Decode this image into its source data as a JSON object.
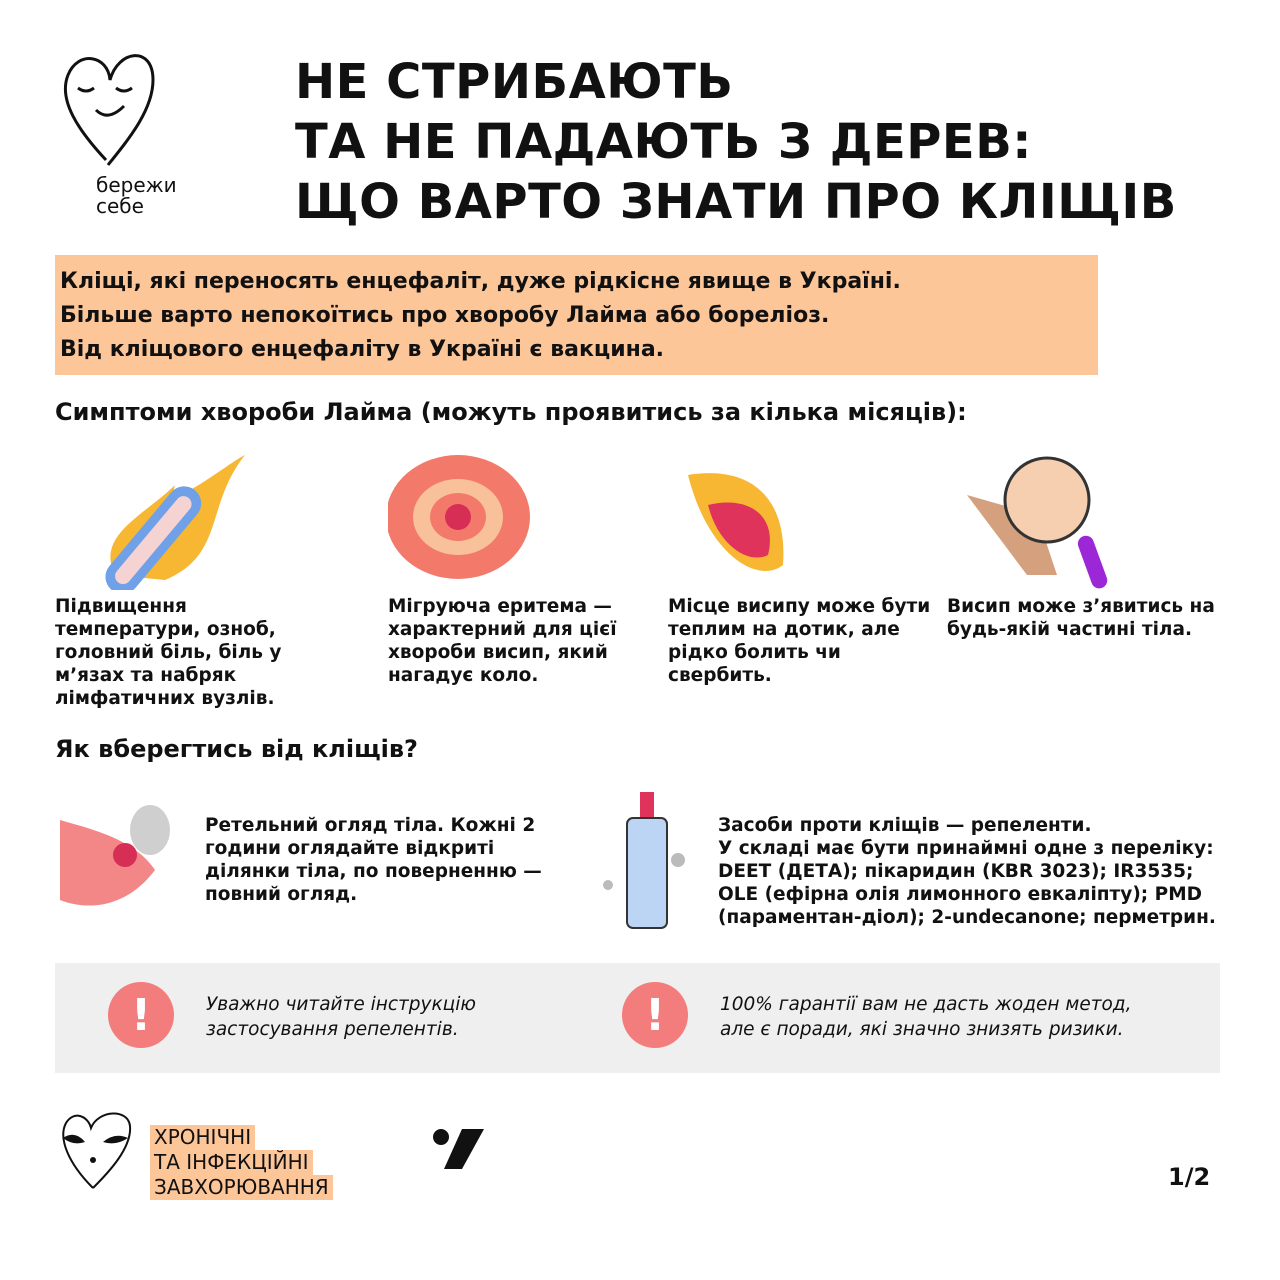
{
  "logo": {
    "text_line1": "бережи",
    "text_line2": "себе"
  },
  "title": [
    "НЕ СТРИБАЮТЬ",
    "ТА НЕ ПАДАЮТЬ З ДЕРЕВ:",
    "ЩО ВАРТО ЗНАТИ ПРО КЛІЩІВ"
  ],
  "intro": [
    "Кліщі, які переносять енцефаліт, дуже рідкісне явище в Україні.",
    "Більше варто непокоїтись про хворобу Лайма або бореліоз.",
    "Від кліщового енцефаліту в Україні є вакцина."
  ],
  "symptoms": {
    "heading": "Симптоми хвороби Лайма",
    "heading_note": "(можуть проявитись за кілька місяців):",
    "items": [
      {
        "icon": "thermometer-fire-icon",
        "text": "Підвищення температури, озноб, головний біль, біль у м’язах та набряк лімфатичних вузлів."
      },
      {
        "icon": "erythema-rash-icon",
        "text": "Мігруюча еритема — характерний для цієї хвороби висип, який нагадує коло."
      },
      {
        "icon": "warm-rash-icon",
        "text": "Місце висипу може бути теплим на дотик, але рідко болить чи свербить."
      },
      {
        "icon": "hand-magnifier-icon",
        "text": "Висип може з’явитись на будь-якій частині тіла."
      }
    ]
  },
  "protection": {
    "heading": "Як вберегтись від кліщів?",
    "items": [
      {
        "icon": "tick-on-skin-icon",
        "bold": "Ретельний огляд тіла.",
        "text": " Кожні 2 години оглядайте відкриті ділянки тіла, по поверненню — повний огляд."
      },
      {
        "icon": "repellent-spray-icon",
        "bold": "Засоби проти кліщів — репеленти.",
        "text": "У складі має бути принаймні одне з переліку: DEET (ДЕТА); пікаридин (KBR 3023); IR3535; OLE (ефірна олія лимонного евкаліпту); PMD (парамeнтан-діол); 2-undecanone; перметрин."
      }
    ]
  },
  "warnings": [
    {
      "icon": "exclamation-icon",
      "mark": "!",
      "text": "Уважно читайте інструкцію застосування репелентів."
    },
    {
      "icon": "exclamation-icon",
      "mark": "!",
      "text": "100% гарантії вам не дасть жоден метод, але є поради, які значно знизять ризики."
    }
  ],
  "footer": {
    "category": [
      "ХРОНІЧНІ",
      "ТА ІНФЕКЦІЙНІ",
      "ЗАВХОРЮВАННЯ"
    ],
    "page": "1/2"
  },
  "colors": {
    "accent": "#fdc699",
    "warning": "#f37c7c",
    "panel": "#efefef"
  }
}
